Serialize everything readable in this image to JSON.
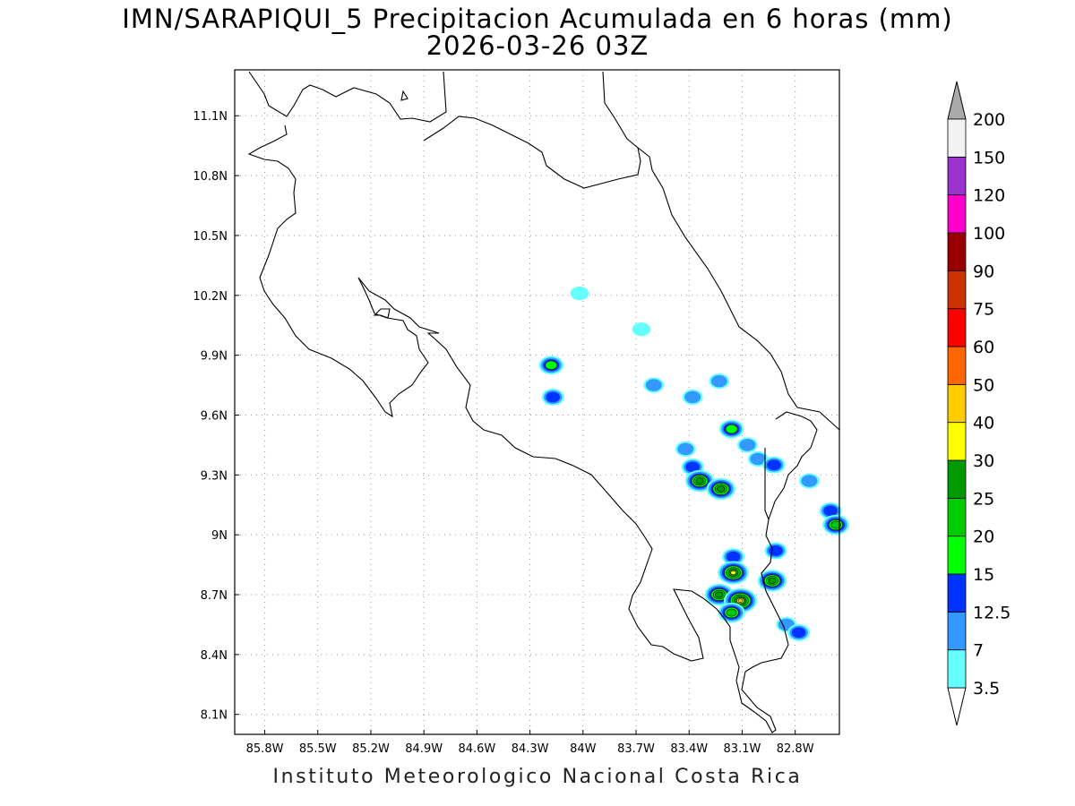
{
  "title": {
    "line1": "IMN/SARAPIQUI_5 Precipitacion Acumulada en 6 horas (mm)",
    "line2": "2026-03-26 03Z"
  },
  "footer": "Instituto Meteorologico Nacional Costa Rica",
  "map": {
    "lon_range": [
      -85.97,
      -82.55
    ],
    "lat_range": [
      8.0,
      11.33
    ],
    "lon_ticks": [
      {
        "v": -85.8,
        "label": "85.8W"
      },
      {
        "v": -85.5,
        "label": "85.5W"
      },
      {
        "v": -85.2,
        "label": "85.2W"
      },
      {
        "v": -84.9,
        "label": "84.9W"
      },
      {
        "v": -84.6,
        "label": "84.6W"
      },
      {
        "v": -84.3,
        "label": "84.3W"
      },
      {
        "v": -84.0,
        "label": "84W"
      },
      {
        "v": -83.7,
        "label": "83.7W"
      },
      {
        "v": -83.4,
        "label": "83.4W"
      },
      {
        "v": -83.1,
        "label": "83.1W"
      },
      {
        "v": -82.8,
        "label": "82.8W"
      }
    ],
    "lat_ticks": [
      {
        "v": 11.1,
        "label": "11.1N"
      },
      {
        "v": 10.8,
        "label": "10.8N"
      },
      {
        "v": 10.5,
        "label": "10.5N"
      },
      {
        "v": 10.2,
        "label": "10.2N"
      },
      {
        "v": 9.9,
        "label": "9.9N"
      },
      {
        "v": 9.6,
        "label": "9.6N"
      },
      {
        "v": 9.3,
        "label": "9.3N"
      },
      {
        "v": 9.0,
        "label": "9N"
      },
      {
        "v": 8.7,
        "label": "8.7N"
      },
      {
        "v": 8.4,
        "label": "8.4N"
      },
      {
        "v": 8.1,
        "label": "8.1N"
      }
    ],
    "grid": "dotted",
    "precip_cells": [
      {
        "lon": -84.02,
        "lat": 10.21,
        "level": 1
      },
      {
        "lon": -83.67,
        "lat": 10.03,
        "level": 1
      },
      {
        "lon": -84.18,
        "lat": 9.85,
        "level": 4
      },
      {
        "lon": -84.17,
        "lat": 9.69,
        "level": 3
      },
      {
        "lon": -83.6,
        "lat": 9.75,
        "level": 2
      },
      {
        "lon": -83.23,
        "lat": 9.77,
        "level": 2
      },
      {
        "lon": -83.38,
        "lat": 9.69,
        "level": 2
      },
      {
        "lon": -83.16,
        "lat": 9.53,
        "level": 4
      },
      {
        "lon": -83.07,
        "lat": 9.45,
        "level": 2
      },
      {
        "lon": -83.42,
        "lat": 9.43,
        "level": 2
      },
      {
        "lon": -83.38,
        "lat": 9.34,
        "level": 3
      },
      {
        "lon": -83.34,
        "lat": 9.27,
        "level": 6
      },
      {
        "lon": -83.22,
        "lat": 9.23,
        "level": 6
      },
      {
        "lon": -83.01,
        "lat": 9.38,
        "level": 2
      },
      {
        "lon": -82.92,
        "lat": 9.35,
        "level": 3
      },
      {
        "lon": -82.72,
        "lat": 9.27,
        "level": 2
      },
      {
        "lon": -82.6,
        "lat": 9.12,
        "level": 3
      },
      {
        "lon": -82.57,
        "lat": 9.05,
        "level": 5
      },
      {
        "lon": -82.91,
        "lat": 8.92,
        "level": 3
      },
      {
        "lon": -83.15,
        "lat": 8.89,
        "level": 3
      },
      {
        "lon": -83.15,
        "lat": 8.81,
        "level": 7
      },
      {
        "lon": -82.93,
        "lat": 8.77,
        "level": 6
      },
      {
        "lon": -83.23,
        "lat": 8.7,
        "level": 6
      },
      {
        "lon": -83.11,
        "lat": 8.67,
        "level": 8
      },
      {
        "lon": -83.16,
        "lat": 8.61,
        "level": 5
      },
      {
        "lon": -82.85,
        "lat": 8.55,
        "level": 2
      },
      {
        "lon": -82.78,
        "lat": 8.51,
        "level": 3
      }
    ]
  },
  "colorbar": {
    "labels": [
      "3.5",
      "7",
      "12.5",
      "15",
      "20",
      "25",
      "30",
      "40",
      "50",
      "60",
      "75",
      "90",
      "100",
      "120",
      "150",
      "200"
    ],
    "colors": [
      "#66ffff",
      "#3399ff",
      "#0033ff",
      "#00ff00",
      "#00cc00",
      "#009900",
      "#ffff00",
      "#ffcc00",
      "#ff6600",
      "#ff0000",
      "#cc3300",
      "#990000",
      "#ff00cc",
      "#9933cc",
      "#f2f2f2"
    ],
    "over_color": "#aaaaaa",
    "under_color": "#ffffff"
  }
}
